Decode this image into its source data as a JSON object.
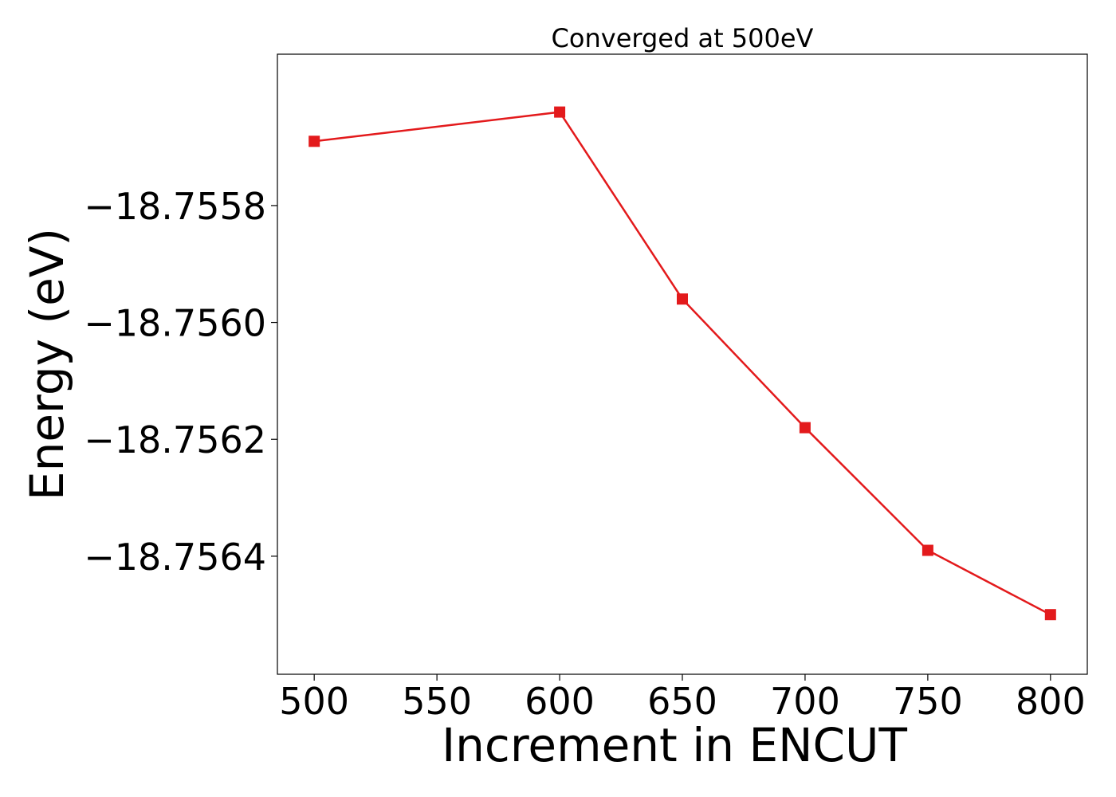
{
  "chart_data": {
    "type": "line",
    "title": "Converged at 500eV",
    "xlabel": "Increment in ENCUT",
    "ylabel": "Energy (eV)",
    "x": [
      500,
      600,
      650,
      700,
      750,
      800
    ],
    "series": [
      {
        "values": [
          -18.75569,
          -18.75564,
          -18.75596,
          -18.75618,
          -18.75639,
          -18.7565
        ],
        "color": "#e31a1c",
        "marker": "square"
      }
    ],
    "xticks": [
      500,
      550,
      600,
      650,
      700,
      750,
      800
    ],
    "xtick_labels": [
      "500",
      "550",
      "600",
      "650",
      "700",
      "750",
      "800"
    ],
    "yticks": [
      -18.7558,
      -18.756,
      -18.7562,
      -18.7564
    ],
    "ytick_labels": [
      "−18.7558",
      "−18.7560",
      "−18.7562",
      "−18.7564"
    ],
    "xlim": [
      485,
      815
    ],
    "ylim": [
      -18.756602,
      -18.755541
    ],
    "grid": false,
    "legend": "none"
  }
}
